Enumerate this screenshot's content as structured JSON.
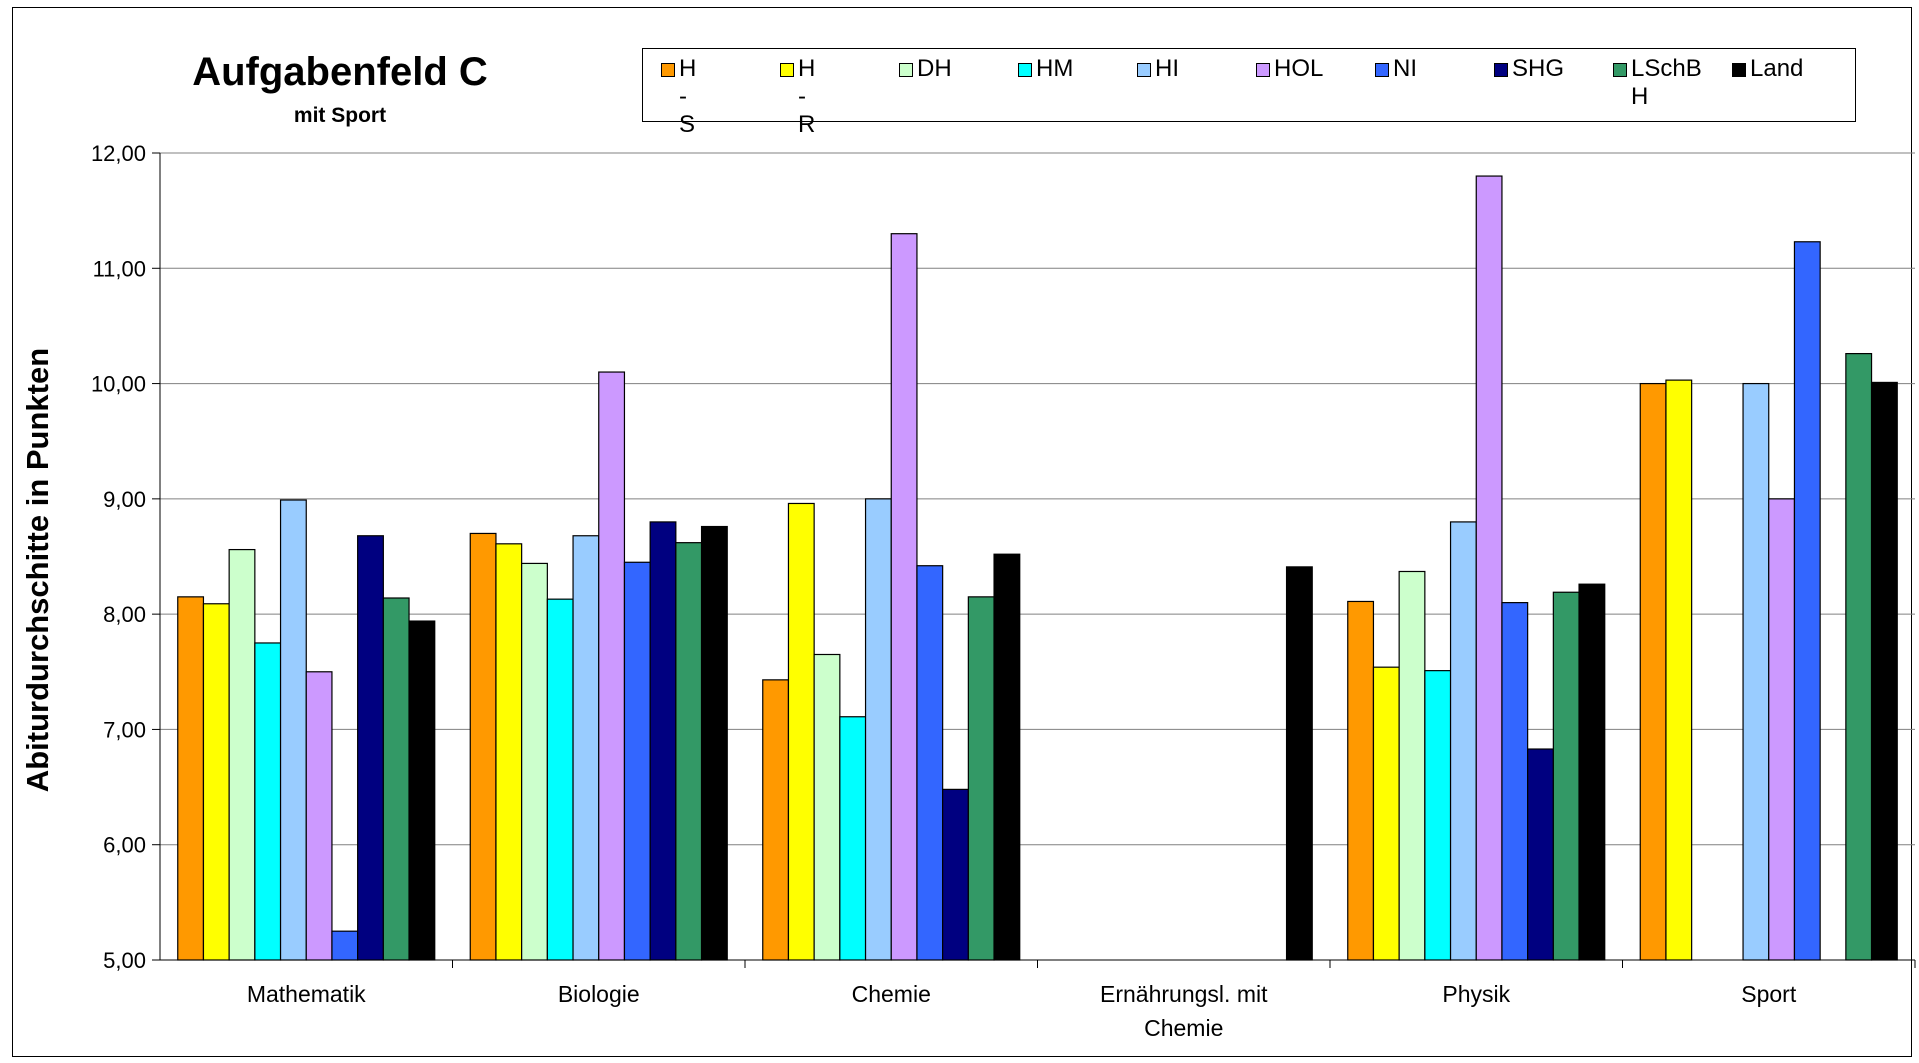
{
  "chart_data": {
    "type": "bar",
    "title": "Aufgabenfeld C",
    "subtitle": "mit Sport",
    "ylabel": "Abiturdurchschitte in Punkten",
    "xlabel": "",
    "ylim": [
      5,
      12
    ],
    "yticks": [
      "5,00",
      "6,00",
      "7,00",
      "8,00",
      "9,00",
      "10,00",
      "11,00",
      "12,00"
    ],
    "grid": "horizontal",
    "legend_position": "top",
    "categories": [
      "Mathematik",
      "Biologie",
      "Chemie",
      "Ernährungsl. mit Chemie",
      "Physik",
      "Sport"
    ],
    "series": [
      {
        "name": "H - S",
        "color": "#ff9900",
        "values": [
          8.15,
          8.7,
          7.43,
          null,
          8.11,
          10.0
        ]
      },
      {
        "name": "H -R",
        "color": "#ffff00",
        "values": [
          8.09,
          8.61,
          8.96,
          null,
          7.54,
          10.03
        ]
      },
      {
        "name": "DH",
        "color": "#ccffcc",
        "values": [
          8.56,
          8.44,
          7.65,
          null,
          8.37,
          null
        ]
      },
      {
        "name": "HM",
        "color": "#00ffff",
        "values": [
          7.75,
          8.13,
          7.11,
          null,
          7.51,
          null
        ]
      },
      {
        "name": "HI",
        "color": "#99ccff",
        "values": [
          8.99,
          8.68,
          9.0,
          null,
          8.8,
          10.0
        ]
      },
      {
        "name": "HOL",
        "color": "#cc99ff",
        "values": [
          7.5,
          10.1,
          11.3,
          null,
          11.8,
          9.0
        ]
      },
      {
        "name": "NI",
        "color": "#3366ff",
        "values": [
          5.25,
          8.45,
          8.42,
          null,
          8.1,
          11.23
        ]
      },
      {
        "name": "SHG",
        "color": "#000080",
        "values": [
          8.68,
          8.8,
          6.48,
          null,
          6.83,
          null
        ]
      },
      {
        "name": "LSchB\nH",
        "color": "#339966",
        "values": [
          8.14,
          8.62,
          8.15,
          null,
          8.19,
          10.26
        ]
      },
      {
        "name": "Land",
        "color": "#000000",
        "values": [
          7.94,
          8.76,
          8.52,
          8.41,
          8.26,
          10.01
        ]
      }
    ]
  }
}
